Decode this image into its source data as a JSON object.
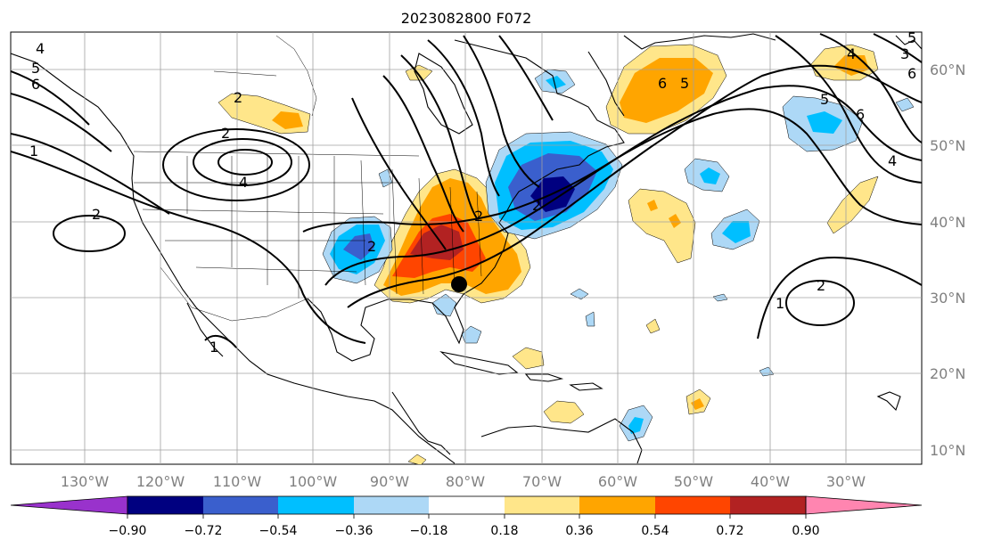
{
  "title": "2023082800 F072",
  "lon_labels": [
    "130°W",
    "120°W",
    "110°W",
    "100°W",
    "90°W",
    "80°W",
    "70°W",
    "60°W",
    "50°W",
    "40°W",
    "30°W"
  ],
  "lat_labels": [
    "60°N",
    "50°N",
    "40°N",
    "30°N",
    "20°N",
    "10°N"
  ],
  "colorbar": {
    "tick_labels": [
      "−0.90",
      "−0.72",
      "−0.54",
      "−0.36",
      "−0.18",
      "0.18",
      "0.36",
      "0.54",
      "0.72",
      "0.90"
    ],
    "colors": [
      "#9932cc",
      "#000080",
      "#3a5fcd",
      "#00bfff",
      "#add8f6",
      "#ffffff",
      "#ffe68a",
      "#ffa500",
      "#ff4500",
      "#b22222",
      "#ff85b0"
    ]
  },
  "contour_labels": [
    "4",
    "5",
    "6",
    "1",
    "2",
    "2",
    "2",
    "4",
    "2",
    "2",
    "2",
    "5",
    "6",
    "6",
    "5",
    "4",
    "3",
    "5",
    "6",
    "4",
    "1",
    "2",
    "1"
  ],
  "marker": "black-dot",
  "colors": {
    "land_outline": "#000000",
    "grid": "#a0a0a0",
    "axis_label": "#808080"
  }
}
